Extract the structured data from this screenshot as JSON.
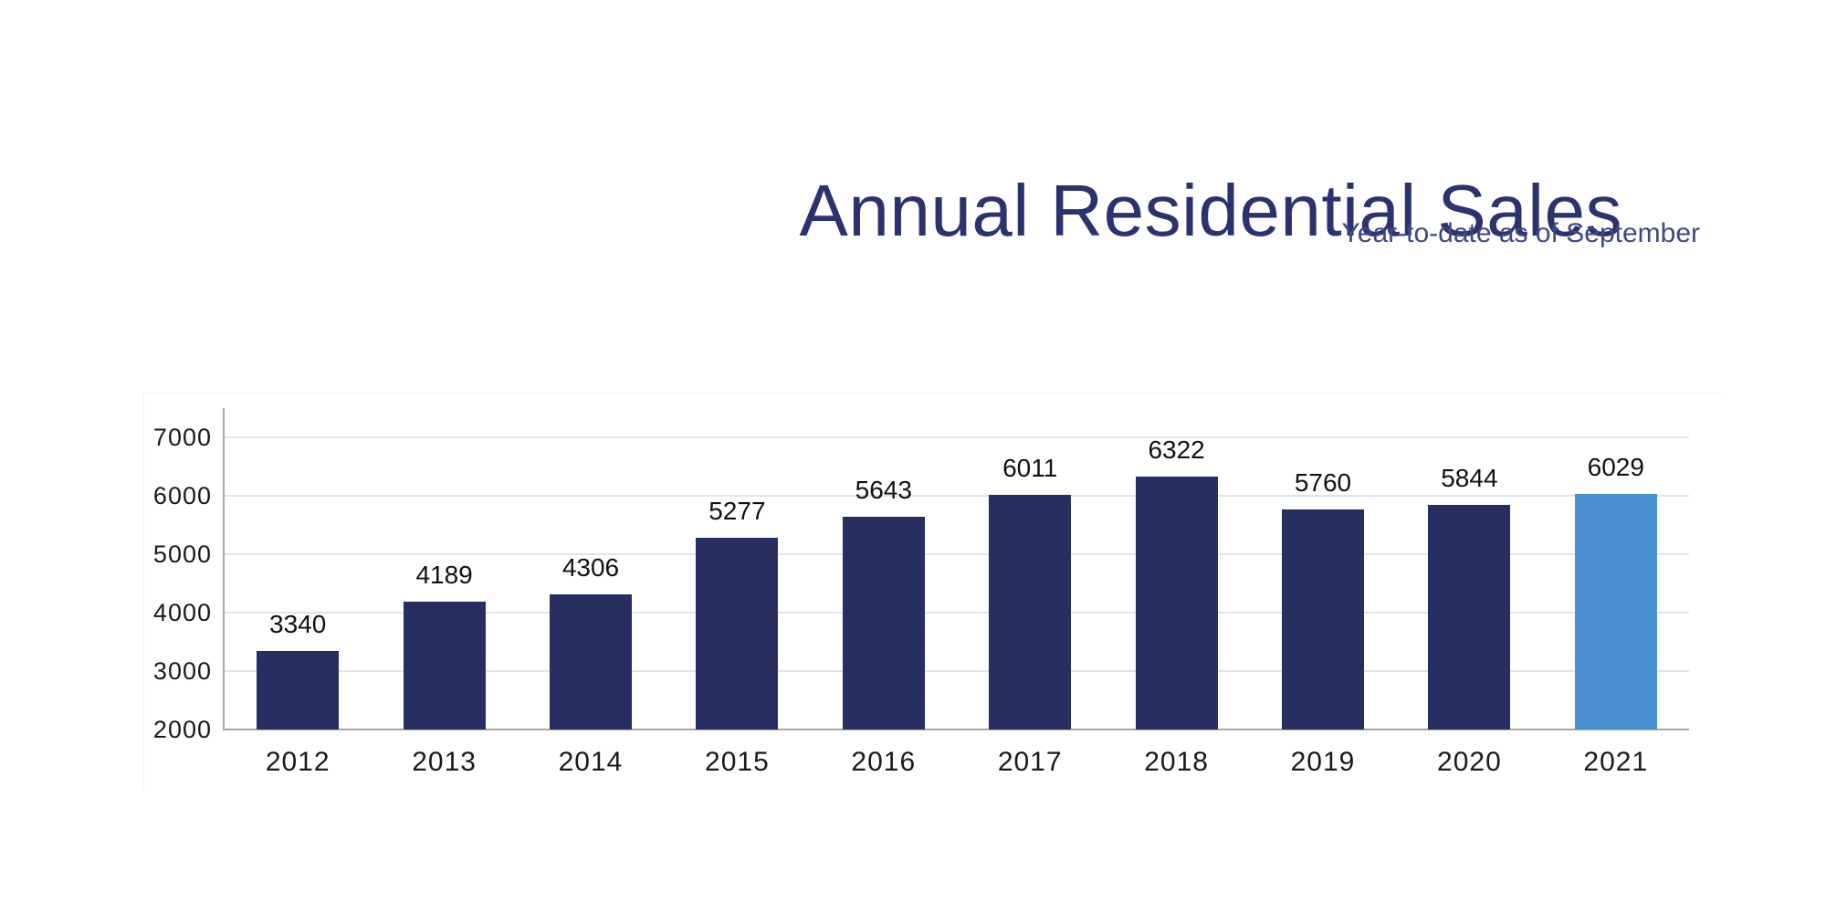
{
  "header": {
    "title": "Annual Residential Sales",
    "subtitle": "Year-to-date as of September"
  },
  "chart_data": {
    "type": "bar",
    "title": "Annual Residential Sales",
    "subtitle": "Year-to-date as of September",
    "categories": [
      "2012",
      "2013",
      "2014",
      "2015",
      "2016",
      "2017",
      "2018",
      "2019",
      "2020",
      "2021"
    ],
    "values": [
      3340,
      4189,
      4306,
      5277,
      5643,
      6011,
      6322,
      5760,
      5844,
      6029
    ],
    "ylim": [
      2000,
      7000
    ],
    "yticks": [
      2000,
      3000,
      4000,
      5000,
      6000,
      7000
    ],
    "grid": true,
    "legend_position": "none",
    "data_labels": true,
    "highlight_index": 9,
    "colors": {
      "bar": "#272f62",
      "highlight_bar": "#4b90d0",
      "gridline": "#dde4f0",
      "axis": "#a6a6a6",
      "tick_label": "#1a1a1a",
      "value_label": "#111111",
      "title": "#2b3270",
      "subtitle": "#3e4a85"
    }
  }
}
